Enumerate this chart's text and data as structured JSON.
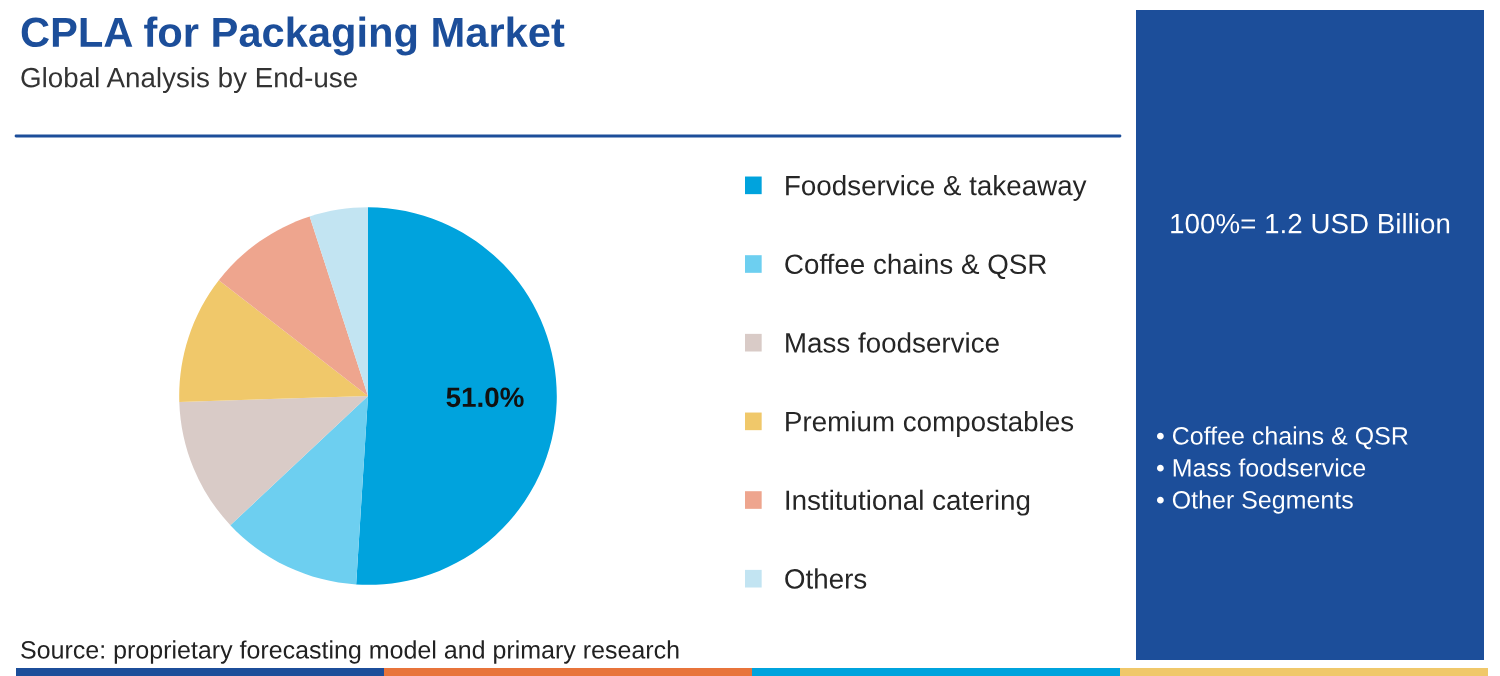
{
  "chart_data": {
    "type": "pie",
    "title": "CPLA for Packaging Market",
    "subtitle": "Global Analysis by End-use",
    "categories": [
      "Foodservice & takeaway",
      "Coffee chains & QSR",
      "Mass foodservice",
      "Premium compostables",
      "Institutional catering",
      "Others"
    ],
    "values": [
      51,
      12,
      11.5,
      11,
      9.5,
      5
    ],
    "colors": [
      "#00a3dd",
      "#6dcff0",
      "#d9cbc7",
      "#f0c86a",
      "#eea58e",
      "#c2e4f2"
    ],
    "value_labels": [
      "51.0%",
      null,
      null,
      null,
      null,
      null
    ],
    "legend": "right",
    "annotations": [
      "Source: proprietary forecasting model and primary research",
      "100%= 1.2 USD Billion",
      "• Coffee chains & QSR",
      "• Mass foodservice",
      "• Other Segments"
    ]
  }
}
